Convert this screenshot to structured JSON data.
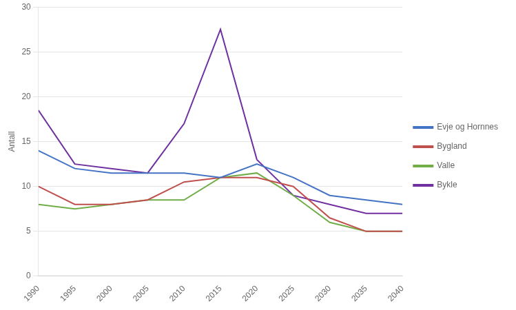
{
  "chart_data": {
    "type": "line",
    "x": [
      1990,
      1995,
      2000,
      2005,
      2010,
      2015,
      2020,
      2025,
      2030,
      2035,
      2040
    ],
    "series": [
      {
        "name": "Evje og Hornnes",
        "color": "#4472C4",
        "values": [
          14,
          12,
          11.5,
          11.5,
          11.5,
          11,
          12.5,
          11,
          9,
          8.5,
          8
        ]
      },
      {
        "name": "Bygland",
        "color": "#C0504D",
        "values": [
          10,
          8,
          8,
          8.5,
          10.5,
          11,
          11,
          10,
          6.5,
          5,
          5
        ]
      },
      {
        "name": "Valle",
        "color": "#70AD47",
        "values": [
          8,
          7.5,
          8,
          8.5,
          8.5,
          11,
          11.5,
          9,
          6,
          5,
          5
        ]
      },
      {
        "name": "Bykle",
        "color": "#7030A0",
        "values": [
          18.5,
          12.5,
          12,
          11.5,
          17,
          27.5,
          13,
          9,
          8,
          7,
          7
        ]
      }
    ],
    "ylabel": "Antall",
    "xlim": [
      1990,
      2040
    ],
    "xticks": [
      1990,
      1995,
      2000,
      2005,
      2010,
      2015,
      2020,
      2025,
      2030,
      2035,
      2040
    ],
    "ylim": [
      0,
      30
    ],
    "yticks": [
      0,
      5,
      10,
      15,
      20,
      25,
      30
    ],
    "grid": "y",
    "legend": "right"
  }
}
